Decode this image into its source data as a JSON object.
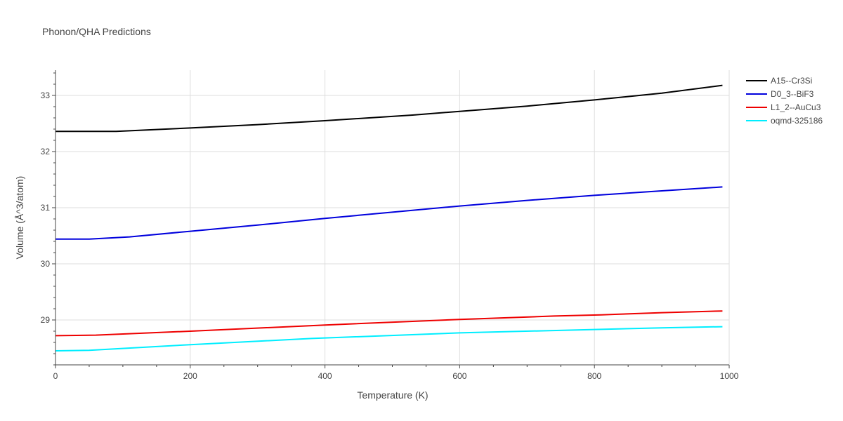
{
  "chart_data": {
    "type": "line",
    "title": "Phonon/QHA Predictions",
    "xlabel": "Temperature (K)",
    "ylabel": "Volume (Å^3/atom)",
    "xlim": [
      0,
      1000
    ],
    "ylim": [
      28.2,
      33.45
    ],
    "xticks": [
      0,
      200,
      400,
      600,
      800,
      1000
    ],
    "yticks": [
      29,
      30,
      31,
      32,
      33
    ],
    "grid": true,
    "legend_position": "top-right",
    "series": [
      {
        "name": "A15--Cr3Si",
        "color": "#000000",
        "x": [
          0,
          90,
          200,
          300,
          400,
          530,
          700,
          800,
          900,
          990
        ],
        "y": [
          32.36,
          32.36,
          32.42,
          32.48,
          32.55,
          32.65,
          32.81,
          32.92,
          33.04,
          33.18
        ]
      },
      {
        "name": "D0_3--BiF3",
        "color": "#0000dd",
        "x": [
          0,
          50,
          110,
          200,
          300,
          400,
          500,
          600,
          700,
          800,
          900,
          990
        ],
        "y": [
          30.44,
          30.44,
          30.48,
          30.58,
          30.69,
          30.81,
          30.92,
          31.03,
          31.13,
          31.22,
          31.3,
          31.37
        ]
      },
      {
        "name": "L1_2--AuCu3",
        "color": "#ee0000",
        "x": [
          0,
          60,
          200,
          400,
          600,
          740,
          810,
          830,
          900,
          990
        ],
        "y": [
          28.72,
          28.73,
          28.8,
          28.91,
          29.01,
          29.07,
          29.09,
          29.1,
          29.13,
          29.16
        ]
      },
      {
        "name": "oqmd-325186",
        "color": "#00eeff",
        "x": [
          0,
          50,
          200,
          380,
          600,
          800,
          900,
          990
        ],
        "y": [
          28.45,
          28.46,
          28.56,
          28.67,
          28.77,
          28.83,
          28.86,
          28.88
        ]
      }
    ]
  }
}
